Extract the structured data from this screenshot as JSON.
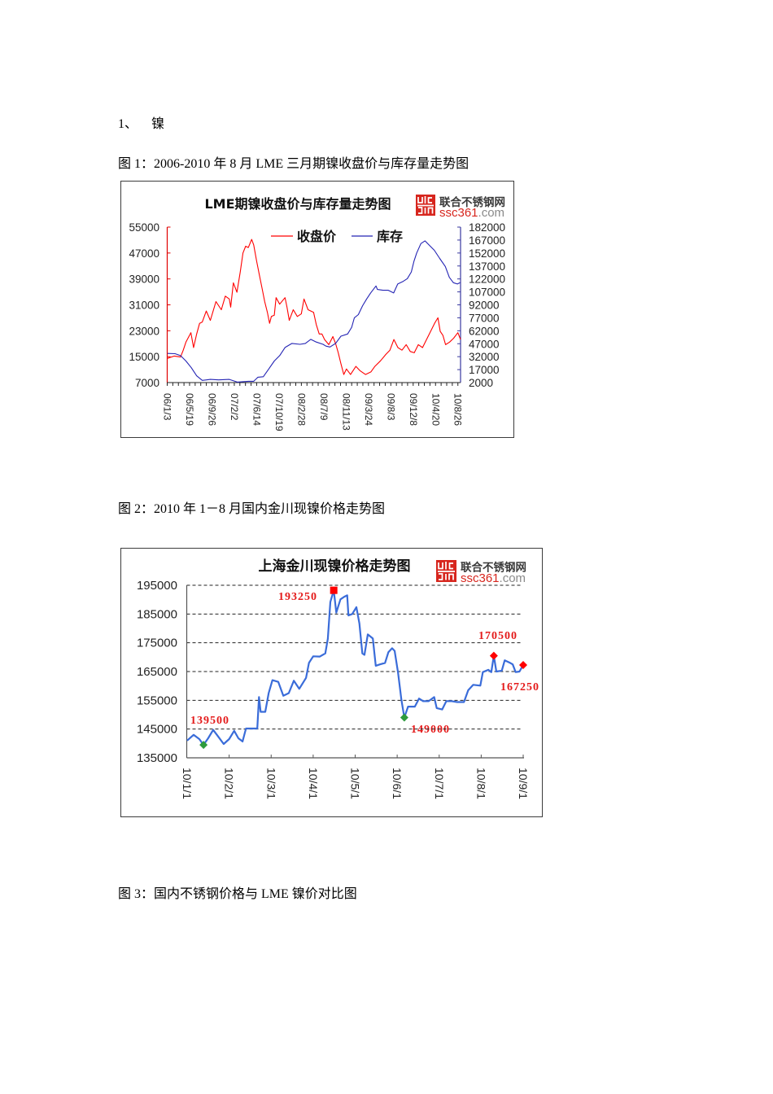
{
  "document": {
    "section": {
      "number": "1、",
      "title": "镍"
    },
    "figures": [
      {
        "caption": "图 1：2006-2010 年 8 月 LME 三月期镍收盘价与库存量走势图"
      },
      {
        "caption": "图 2：2010 年 1－8 月国内金川现镍价格走势图"
      },
      {
        "caption": "图 3：国内不锈钢价格与 LME 镍价对比图"
      }
    ]
  },
  "logo": {
    "name": "联合不锈钢网",
    "domain_main": "ssc361",
    "domain_suffix": ".com",
    "color": "#d7261e"
  },
  "chart_data": [
    {
      "type": "line",
      "title": "LME期镍收盘价与库存量走势图",
      "legend_position": "top-center",
      "legend": [
        {
          "name": "收盘价",
          "color": "#ff0000"
        },
        {
          "name": "库存",
          "color": "#2424b4"
        }
      ],
      "grid": false,
      "categories": [
        "06/1/3",
        "06/5/19",
        "06/9/26",
        "07/2/2",
        "07/6/14",
        "07/10/19",
        "08/2/28",
        "08/7/9",
        "08/11/13",
        "09/3/24",
        "09/8/3",
        "09/12/8",
        "10/4/20",
        "10/8/26"
      ],
      "xlabel": "",
      "y_left": {
        "label": "收盘价",
        "color": "#e00000",
        "ylim": [
          7000,
          55000
        ],
        "ticks": [
          55000,
          47000,
          39000,
          31000,
          23000,
          15000,
          7000
        ]
      },
      "y_right": {
        "label": "库存",
        "color": "#3a3aa0",
        "ylim": [
          2000,
          182000
        ],
        "ticks": [
          182000,
          167000,
          152000,
          137000,
          122000,
          107000,
          92000,
          77000,
          62000,
          47000,
          32000,
          17000,
          2000
        ]
      },
      "series": [
        {
          "name": "收盘价",
          "axis": "left",
          "color": "#ff0000",
          "points": [
            [
              0,
              14500
            ],
            [
              0.3,
              15200
            ],
            [
              0.58,
              14900
            ],
            [
              0.7,
              17000
            ],
            [
              0.82,
              19500
            ],
            [
              1.04,
              22400
            ],
            [
              1.16,
              17800
            ],
            [
              1.3,
              22000
            ],
            [
              1.43,
              25300
            ],
            [
              1.55,
              25700
            ],
            [
              1.73,
              29100
            ],
            [
              1.91,
              26200
            ],
            [
              2.16,
              32000
            ],
            [
              2.4,
              29500
            ],
            [
              2.58,
              33700
            ],
            [
              2.76,
              32800
            ],
            [
              2.82,
              30300
            ],
            [
              2.94,
              37800
            ],
            [
              3.1,
              34900
            ],
            [
              3.25,
              41200
            ],
            [
              3.37,
              47000
            ],
            [
              3.49,
              49100
            ],
            [
              3.61,
              48700
            ],
            [
              3.76,
              51200
            ],
            [
              3.85,
              49500
            ],
            [
              3.98,
              44500
            ],
            [
              4.1,
              40300
            ],
            [
              4.22,
              36200
            ],
            [
              4.34,
              32000
            ],
            [
              4.46,
              28700
            ],
            [
              4.56,
              25300
            ],
            [
              4.64,
              27400
            ],
            [
              4.77,
              27800
            ],
            [
              4.85,
              33200
            ],
            [
              5.01,
              31200
            ],
            [
              5.25,
              33200
            ],
            [
              5.34,
              30300
            ],
            [
              5.44,
              26200
            ],
            [
              5.62,
              29500
            ],
            [
              5.8,
              27400
            ],
            [
              5.98,
              28200
            ],
            [
              6.1,
              32800
            ],
            [
              6.28,
              29500
            ],
            [
              6.53,
              28700
            ],
            [
              6.65,
              24900
            ],
            [
              6.78,
              22000
            ],
            [
              6.9,
              22000
            ],
            [
              7.02,
              20300
            ],
            [
              7.21,
              18700
            ],
            [
              7.39,
              21200
            ],
            [
              7.51,
              19100
            ],
            [
              7.63,
              16200
            ],
            [
              7.75,
              12800
            ],
            [
              7.88,
              9500
            ],
            [
              8.0,
              11200
            ],
            [
              8.18,
              9500
            ],
            [
              8.42,
              12000
            ],
            [
              8.6,
              10700
            ],
            [
              8.85,
              9500
            ],
            [
              9.09,
              10300
            ],
            [
              9.27,
              12000
            ],
            [
              9.52,
              13700
            ],
            [
              9.76,
              15700
            ],
            [
              9.94,
              17000
            ],
            [
              10.12,
              20300
            ],
            [
              10.3,
              17800
            ],
            [
              10.48,
              17000
            ],
            [
              10.67,
              18700
            ],
            [
              10.85,
              16600
            ],
            [
              11.03,
              16200
            ],
            [
              11.21,
              18700
            ],
            [
              11.4,
              17800
            ],
            [
              11.58,
              20300
            ],
            [
              11.76,
              22800
            ],
            [
              11.94,
              25300
            ],
            [
              12.09,
              27000
            ],
            [
              12.19,
              22800
            ],
            [
              12.31,
              21600
            ],
            [
              12.43,
              18700
            ],
            [
              12.61,
              19500
            ],
            [
              12.79,
              20700
            ],
            [
              12.98,
              22400
            ],
            [
              13.1,
              20300
            ]
          ]
        },
        {
          "name": "库存",
          "axis": "right",
          "color": "#2424b4",
          "points": [
            [
              0,
              35700
            ],
            [
              0.33,
              35500
            ],
            [
              0.58,
              33200
            ],
            [
              0.82,
              27000
            ],
            [
              1.06,
              19200
            ],
            [
              1.3,
              9800
            ],
            [
              1.55,
              4500
            ],
            [
              1.91,
              5700
            ],
            [
              2.28,
              5100
            ],
            [
              2.76,
              5700
            ],
            [
              3.12,
              2600
            ],
            [
              3.61,
              3500
            ],
            [
              3.85,
              3500
            ],
            [
              4.04,
              8200
            ],
            [
              4.28,
              8800
            ],
            [
              4.52,
              17600
            ],
            [
              4.77,
              27000
            ],
            [
              5.01,
              33200
            ],
            [
              5.25,
              42600
            ],
            [
              5.56,
              47300
            ],
            [
              5.92,
              46300
            ],
            [
              6.16,
              47300
            ],
            [
              6.4,
              52000
            ],
            [
              6.65,
              48900
            ],
            [
              6.95,
              46300
            ],
            [
              7.08,
              44200
            ],
            [
              7.26,
              43200
            ],
            [
              7.51,
              47300
            ],
            [
              7.75,
              55700
            ],
            [
              8.05,
              58300
            ],
            [
              8.23,
              66000
            ],
            [
              8.35,
              77000
            ],
            [
              8.53,
              80700
            ],
            [
              8.72,
              91000
            ],
            [
              8.9,
              98800
            ],
            [
              9.08,
              105800
            ],
            [
              9.32,
              113900
            ],
            [
              9.38,
              109800
            ],
            [
              9.63,
              108900
            ],
            [
              9.87,
              108900
            ],
            [
              10.11,
              105800
            ],
            [
              10.29,
              116100
            ],
            [
              10.54,
              119200
            ],
            [
              10.72,
              122300
            ],
            [
              10.9,
              130100
            ],
            [
              11.02,
              142600
            ],
            [
              11.14,
              152000
            ],
            [
              11.33,
              163000
            ],
            [
              11.51,
              166100
            ],
            [
              11.69,
              161400
            ],
            [
              11.93,
              155100
            ],
            [
              12.17,
              145700
            ],
            [
              12.42,
              136400
            ],
            [
              12.6,
              123900
            ],
            [
              12.78,
              117600
            ],
            [
              12.96,
              116100
            ],
            [
              13.08,
              117600
            ]
          ]
        }
      ]
    },
    {
      "type": "line",
      "title": "上海金川现镍价格走势图",
      "grid": true,
      "grid_style": "dashed",
      "categories": [
        "10/1/1",
        "10/2/1",
        "10/3/1",
        "10/4/1",
        "10/5/1",
        "10/6/1",
        "10/7/1",
        "10/8/1",
        "10/9/1"
      ],
      "xlabel": "",
      "ylabel": "",
      "y": {
        "ylim": [
          135000,
          195000
        ],
        "ticks": [
          195000,
          185000,
          175000,
          165000,
          155000,
          145000,
          135000
        ]
      },
      "series": [
        {
          "color": "#3a6cd9",
          "points": [
            [
              0,
              141000
            ],
            [
              0.155,
              143000
            ],
            [
              0.29,
              141500
            ],
            [
              0.39,
              139500
            ],
            [
              0.5,
              141800
            ],
            [
              0.62,
              144700
            ],
            [
              0.74,
              142400
            ],
            [
              0.87,
              139800
            ],
            [
              1.0,
              141500
            ],
            [
              1.12,
              144400
            ],
            [
              1.22,
              141800
            ],
            [
              1.32,
              140700
            ],
            [
              1.4,
              145200
            ],
            [
              1.67,
              145200
            ],
            [
              1.71,
              156100
            ],
            [
              1.75,
              151000
            ],
            [
              1.86,
              151000
            ],
            [
              1.94,
              157500
            ],
            [
              2.03,
              162000
            ],
            [
              2.17,
              161400
            ],
            [
              2.29,
              156600
            ],
            [
              2.42,
              157500
            ],
            [
              2.54,
              161800
            ],
            [
              2.67,
              159000
            ],
            [
              2.83,
              162800
            ],
            [
              2.9,
              168000
            ],
            [
              3.0,
              170300
            ],
            [
              3.16,
              170200
            ],
            [
              3.29,
              171300
            ],
            [
              3.35,
              176400
            ],
            [
              3.41,
              189200
            ],
            [
              3.49,
              193250
            ],
            [
              3.55,
              185500
            ],
            [
              3.65,
              190100
            ],
            [
              3.74,
              191000
            ],
            [
              3.81,
              191500
            ],
            [
              3.84,
              184500
            ],
            [
              3.93,
              185000
            ],
            [
              4.03,
              187400
            ],
            [
              4.1,
              181700
            ],
            [
              4.17,
              171300
            ],
            [
              4.22,
              170800
            ],
            [
              4.3,
              177900
            ],
            [
              4.42,
              176500
            ],
            [
              4.49,
              167000
            ],
            [
              4.59,
              167500
            ],
            [
              4.71,
              168000
            ],
            [
              4.79,
              171700
            ],
            [
              4.88,
              173100
            ],
            [
              4.94,
              172200
            ],
            [
              5.02,
              164600
            ],
            [
              5.1,
              155200
            ],
            [
              5.17,
              149000
            ],
            [
              5.26,
              152800
            ],
            [
              5.42,
              152800
            ],
            [
              5.52,
              155600
            ],
            [
              5.62,
              154700
            ],
            [
              5.75,
              154700
            ],
            [
              5.88,
              156100
            ],
            [
              5.94,
              152300
            ],
            [
              6.07,
              151800
            ],
            [
              6.17,
              154700
            ],
            [
              6.3,
              154700
            ],
            [
              6.43,
              154400
            ],
            [
              6.59,
              154400
            ],
            [
              6.69,
              158500
            ],
            [
              6.81,
              160400
            ],
            [
              6.98,
              160100
            ],
            [
              7.04,
              164800
            ],
            [
              7.17,
              165600
            ],
            [
              7.24,
              164800
            ],
            [
              7.3,
              170500
            ],
            [
              7.36,
              165000
            ],
            [
              7.49,
              165300
            ],
            [
              7.56,
              168900
            ],
            [
              7.69,
              168000
            ],
            [
              7.75,
              167500
            ],
            [
              7.82,
              164800
            ],
            [
              7.91,
              165000
            ],
            [
              8.0,
              167250
            ]
          ]
        }
      ],
      "annotations": [
        {
          "label": "193250",
          "x": 3.49,
          "value": 193250,
          "marker": "square",
          "marker_color": "#ff0000",
          "label_color": "#e41b1b"
        },
        {
          "label": "139500",
          "x": 0.39,
          "value": 139500,
          "marker": "diamond",
          "marker_color": "#2e9b3c",
          "label_color": "#e41b1b"
        },
        {
          "label": "149000",
          "x": 5.17,
          "value": 149000,
          "marker": "diamond",
          "marker_color": "#2e9b3c",
          "label_color": "#e41b1b"
        },
        {
          "label": "170500",
          "x": 7.3,
          "value": 170500,
          "marker": "diamond",
          "marker_color": "#ff0000",
          "label_color": "#e41b1b"
        },
        {
          "label": "167250",
          "x": 8.0,
          "value": 167250,
          "marker": "diamond",
          "marker_color": "#ff0000",
          "label_color": "#e41b1b"
        }
      ]
    }
  ]
}
